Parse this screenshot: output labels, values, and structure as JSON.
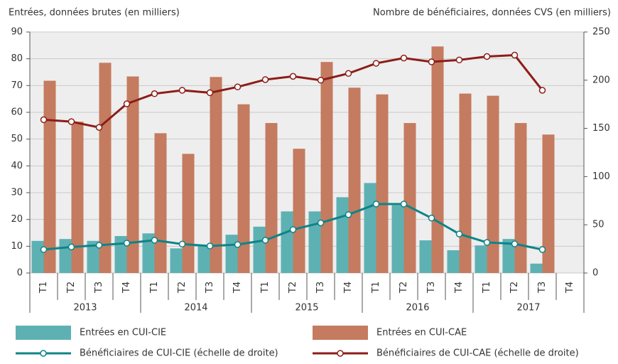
{
  "chart_data": {
    "type": "combo",
    "y_label": "Entrées, données brutes (en milliers)",
    "y2_label": "Nombre de bénéficiaires, données CVS (en milliers)",
    "categories": [
      "T1",
      "T2",
      "T3",
      "T4",
      "T1",
      "T2",
      "T3",
      "T4",
      "T1",
      "T2",
      "T3",
      "T4",
      "T1",
      "T2",
      "T3",
      "T4",
      "T1",
      "T2",
      "T3",
      "T4"
    ],
    "groups": [
      "2013",
      "2014",
      "2015",
      "2016",
      "2017"
    ],
    "ylim": [
      0,
      90
    ],
    "yticks": [
      0,
      10,
      20,
      30,
      40,
      50,
      60,
      70,
      80,
      90
    ],
    "y2lim": [
      0,
      250
    ],
    "y2ticks": [
      0,
      50,
      100,
      150,
      200,
      250
    ],
    "grid": true,
    "series": [
      {
        "name": "Entrées en CUI-CIE",
        "type": "bar",
        "color": "#5eb1b3",
        "values": [
          12,
          12.7,
          12,
          13.8,
          14.8,
          9.2,
          10.5,
          14.3,
          17.3,
          23,
          23,
          28.3,
          33.6,
          25.3,
          12.2,
          8.5,
          10.3,
          12.7,
          3.5,
          null
        ]
      },
      {
        "name": "Entrées en CUI-CAE",
        "type": "bar",
        "color": "#c47b5f",
        "values": [
          71.8,
          56.5,
          78.5,
          73.4,
          52.2,
          44.5,
          73.2,
          63,
          56,
          46.4,
          78.8,
          69.2,
          66.7,
          56,
          84.6,
          67,
          66.2,
          56,
          51.7,
          null
        ]
      },
      {
        "name": "Bénéficiaires de CUI-CIE (échelle de droite)",
        "type": "line",
        "axis": "y2",
        "color": "#0e8487",
        "values": [
          24.3,
          27,
          28.8,
          31,
          34,
          30,
          28,
          29.5,
          34,
          45,
          52,
          60.5,
          71.5,
          71.5,
          57,
          40.5,
          31.7,
          30.2,
          24.3,
          null
        ]
      },
      {
        "name": "Bénéficiaires de CUI-CAE (échelle de droite)",
        "type": "line",
        "axis": "y2",
        "color": "#8c1d18",
        "values": [
          159,
          157,
          151,
          175.5,
          186,
          189.5,
          187,
          193,
          200.6,
          204,
          200,
          207,
          217.5,
          223,
          219,
          221,
          224.6,
          226,
          189.5,
          null
        ]
      }
    ]
  }
}
